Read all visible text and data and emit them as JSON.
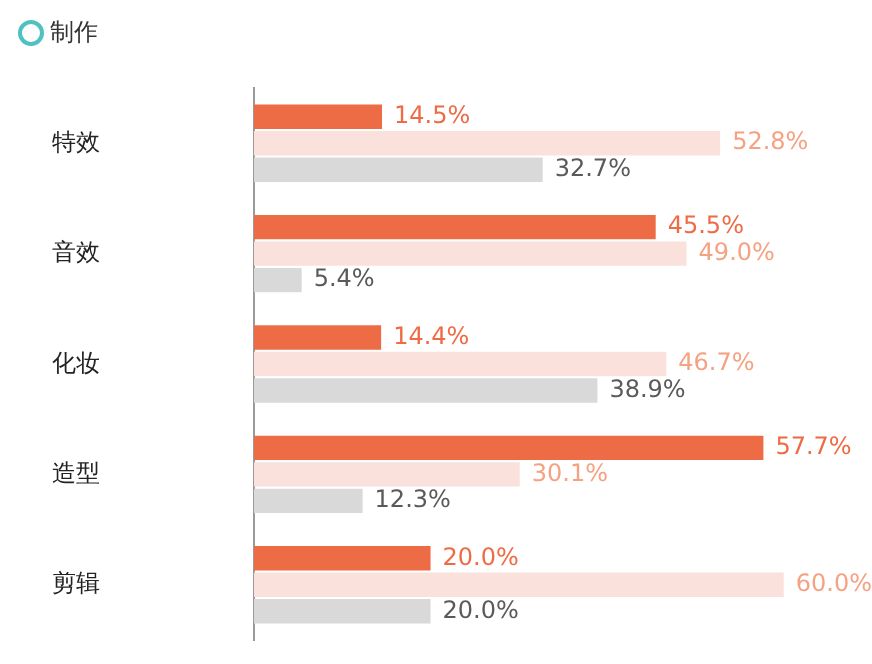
{
  "chart_data": {
    "type": "bar",
    "orientation": "horizontal",
    "title": "制作",
    "categories": [
      "特效",
      "音效",
      "化妆",
      "造型",
      "剪辑"
    ],
    "series": [
      {
        "color": "#ee6c45",
        "values": [
          14.5,
          45.5,
          14.4,
          57.7,
          20.0
        ],
        "value_labels": [
          "14.5%",
          "45.5%",
          "14.4%",
          "57.7%",
          "20.0%"
        ]
      },
      {
        "color": "#fae1db",
        "values": [
          52.8,
          49.0,
          46.7,
          30.1,
          60.0
        ],
        "value_labels": [
          "52.8%",
          "49.0%",
          "46.7%",
          "30.1%",
          "60.0%"
        ]
      },
      {
        "color": "#d9d9d9",
        "values": [
          32.7,
          5.4,
          38.9,
          12.3,
          20.0
        ],
        "value_labels": [
          "32.7%",
          "5.4%",
          "38.9%",
          "12.3%",
          "20.0%"
        ]
      }
    ],
    "legend": false
  }
}
